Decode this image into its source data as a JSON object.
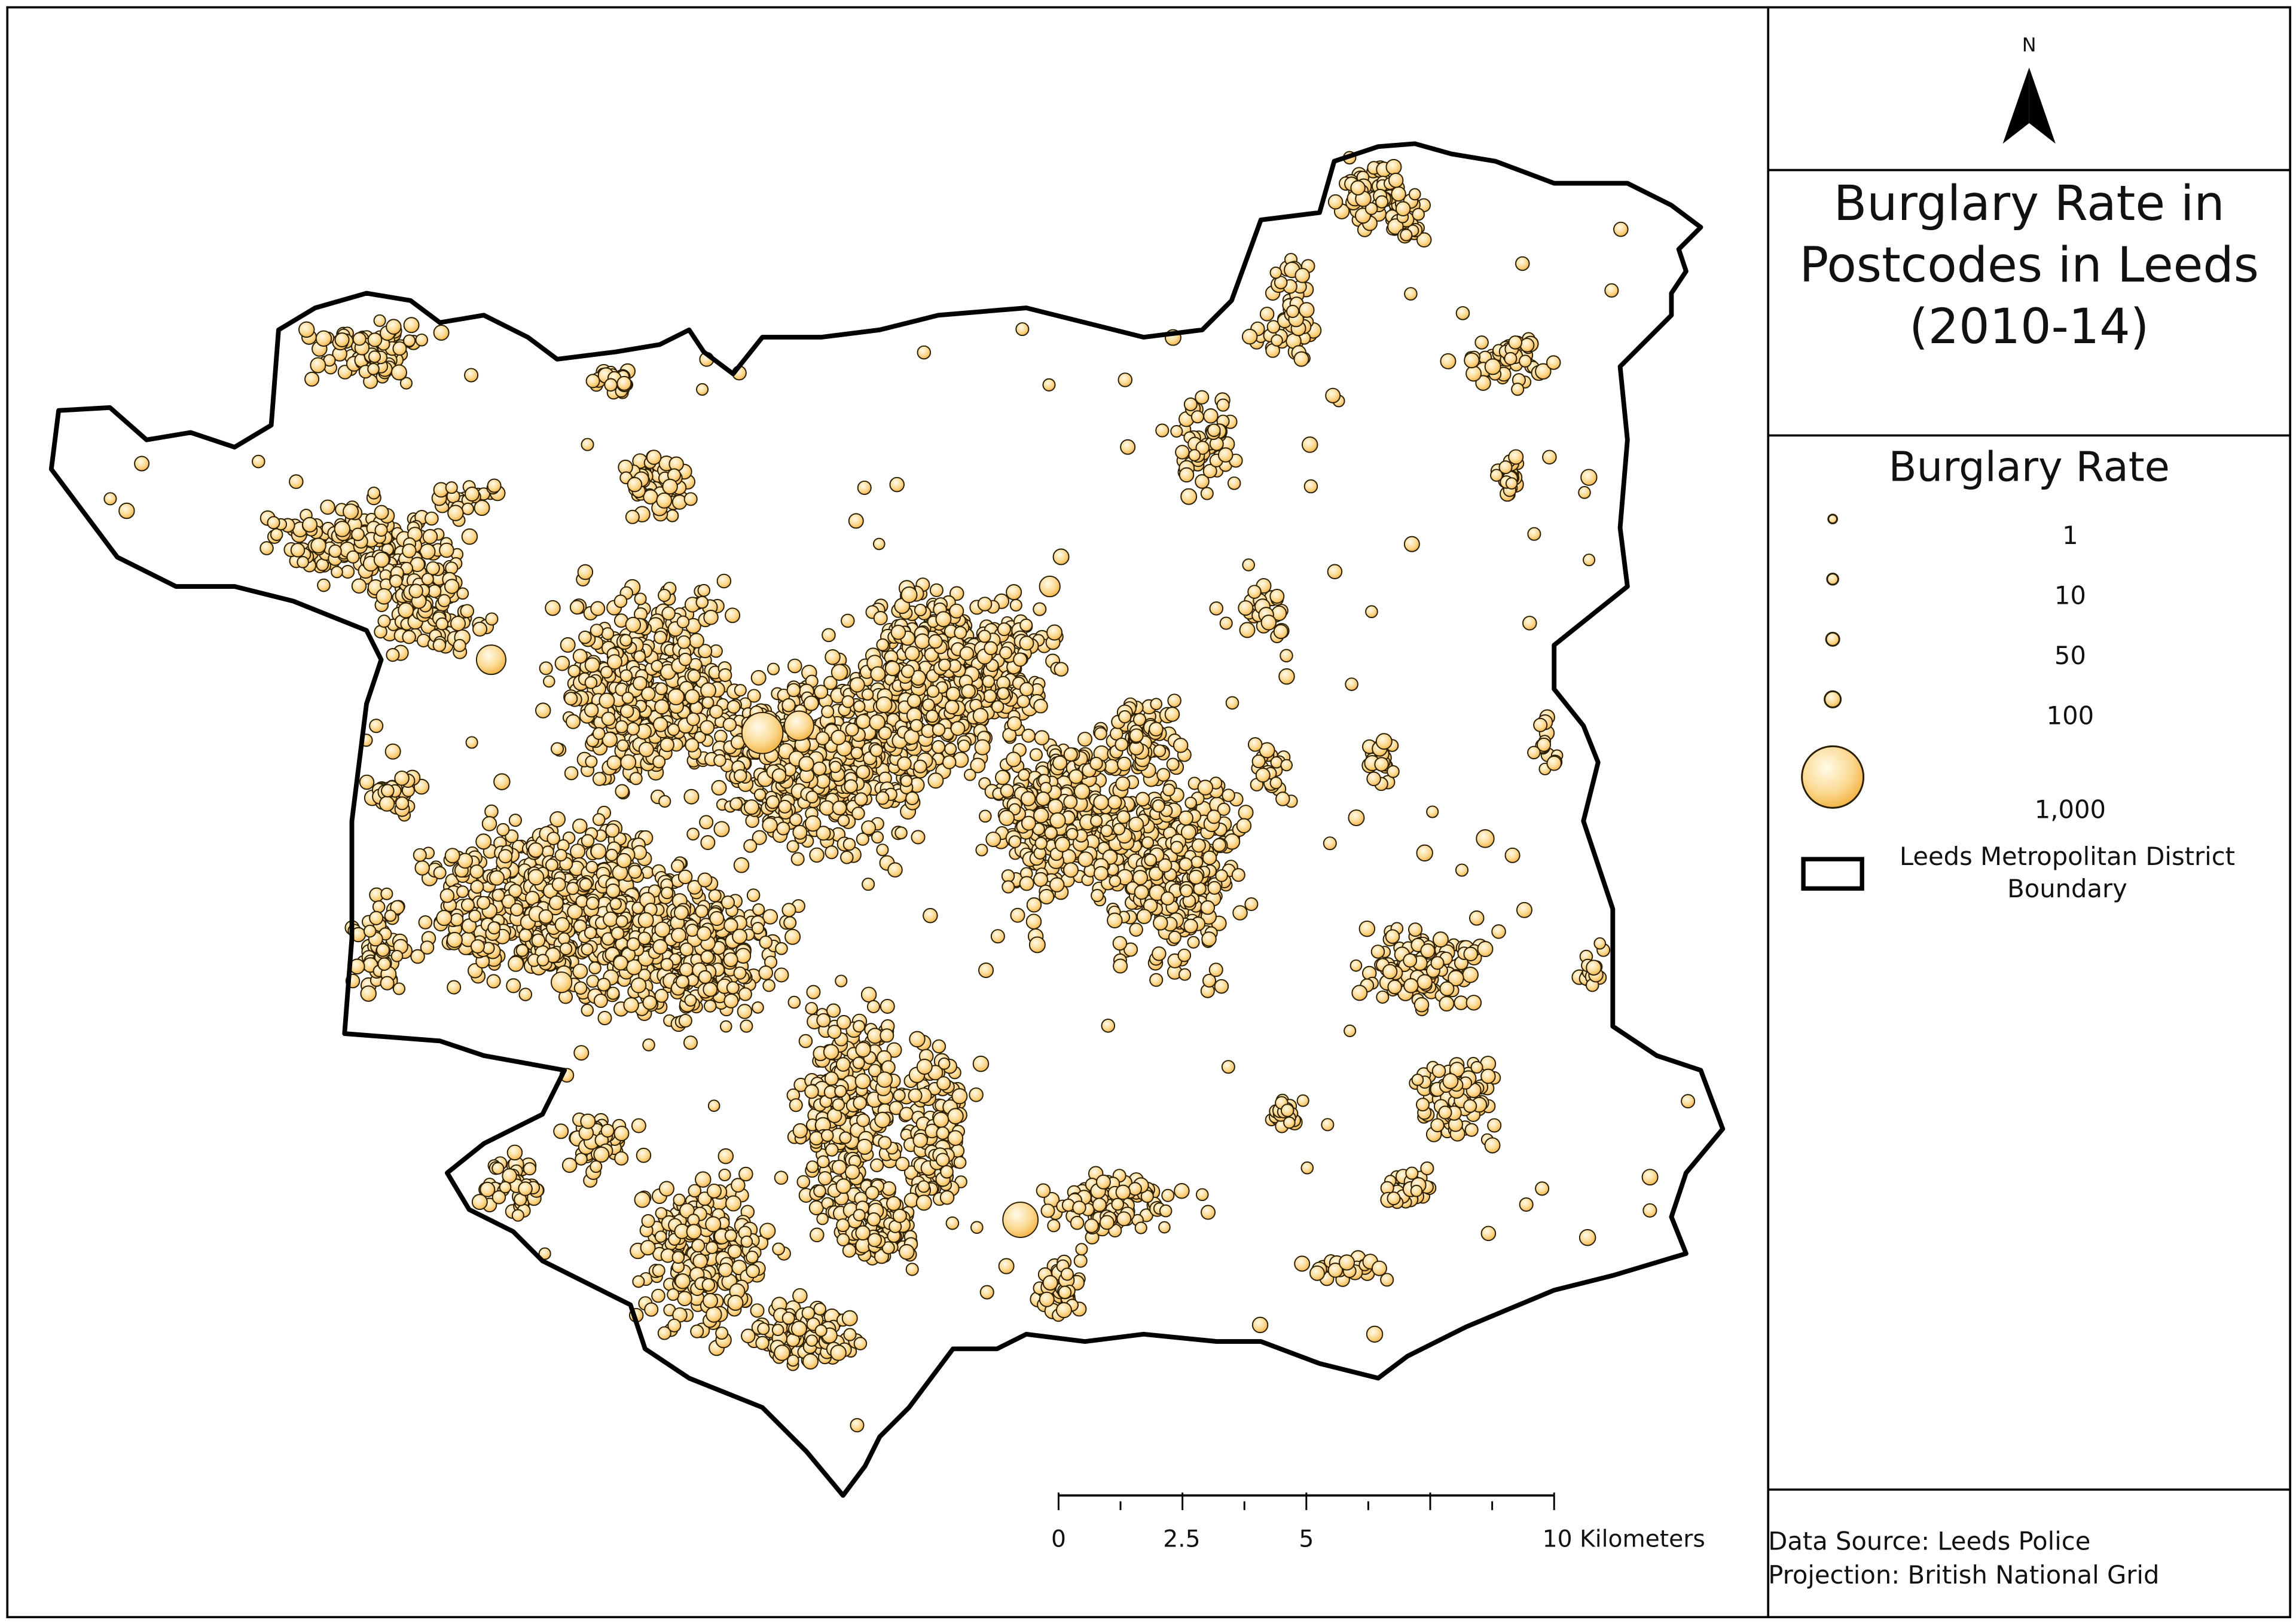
{
  "north": "N",
  "title": [
    "Burglary Rate in",
    "Postcodes in Leeds",
    "(2010-14)"
  ],
  "legend": {
    "title": "Burglary Rate",
    "items": [
      "1",
      "10",
      "50",
      "100",
      "1,000"
    ],
    "boundary": [
      "Leeds Metropolitan District",
      "Boundary"
    ]
  },
  "scale_bar": {
    "labels": [
      "0",
      "2.5",
      "5",
      "10 Kilometers"
    ]
  },
  "source": [
    "Data Source: Leeds Police",
    "Projection: British National Grid"
  ]
}
